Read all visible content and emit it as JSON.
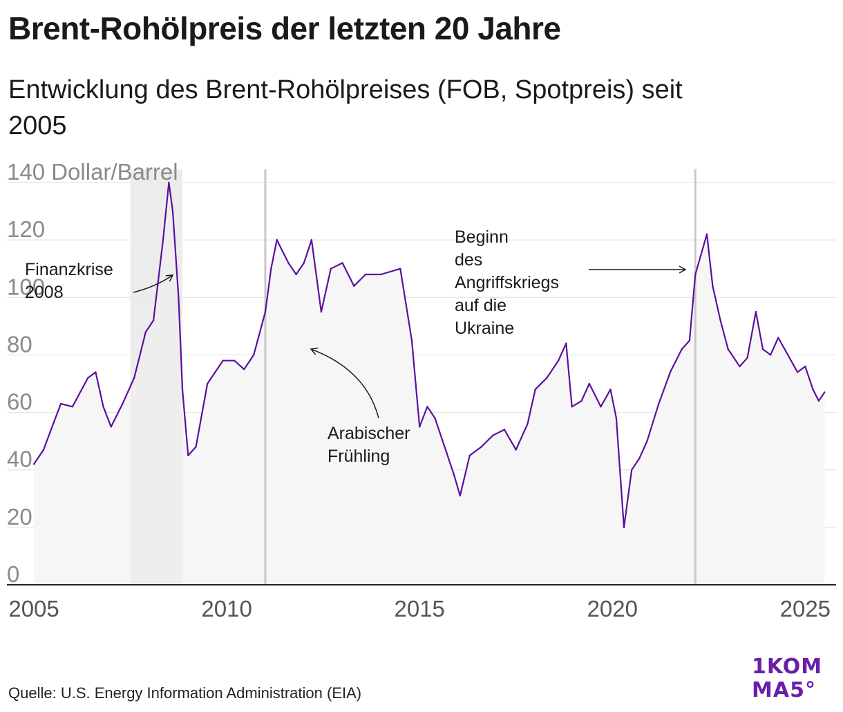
{
  "header": {
    "title": "Brent-Rohölpreis der letzten 20 Jahre",
    "subtitle": "Entwicklung des Brent-Rohölpreises (FOB, Spotpreis) seit 2005"
  },
  "footer": {
    "source": "Quelle: U.S. Energy Information Administration (EIA)",
    "logo_line1": "1KOM",
    "logo_line2": "MA5°"
  },
  "colors": {
    "line": "#5b0f9e",
    "area": "#f6f6f6",
    "highlight_band": "#ececec",
    "event_line": "#c8c8c8",
    "grid": "#dddddd",
    "axis": "#222222",
    "tick_text": "#8a8a8a",
    "year_text": "#555555"
  },
  "chart_data": {
    "type": "line",
    "ylabel": "Dollar/Barrel",
    "ylim": [
      0,
      140
    ],
    "yticks": [
      0,
      20,
      40,
      60,
      80,
      100,
      120,
      140
    ],
    "ytick_labels": [
      "0",
      "20",
      "40",
      "60",
      "80",
      "100",
      "120",
      "140 Dollar/Barrel"
    ],
    "xlim": [
      2004.3,
      2025.8
    ],
    "xticks": [
      2005,
      2010,
      2015,
      2020,
      2025
    ],
    "xtick_labels": [
      "2005",
      "2010",
      "2015",
      "2020",
      "2025"
    ],
    "grid": true,
    "series": [
      {
        "x": [
          2005.0,
          2005.25,
          2005.5,
          2005.7,
          2006.0,
          2006.4,
          2006.6,
          2006.8,
          2007.0,
          2007.3,
          2007.6,
          2007.9,
          2008.1,
          2008.35,
          2008.5,
          2008.6,
          2008.75,
          2008.85,
          2009.0,
          2009.2,
          2009.5,
          2009.9,
          2010.2,
          2010.45,
          2010.7,
          2011.0,
          2011.15,
          2011.3,
          2011.6,
          2011.8,
          2012.0,
          2012.2,
          2012.45,
          2012.7,
          2013.0,
          2013.3,
          2013.6,
          2014.0,
          2014.5,
          2014.8,
          2015.0,
          2015.2,
          2015.4,
          2015.7,
          2015.9,
          2016.05,
          2016.3,
          2016.6,
          2016.9,
          2017.2,
          2017.5,
          2017.8,
          2018.0,
          2018.3,
          2018.6,
          2018.8,
          2018.95,
          2019.2,
          2019.4,
          2019.7,
          2019.95,
          2020.1,
          2020.3,
          2020.5,
          2020.7,
          2020.9,
          2021.2,
          2021.5,
          2021.8,
          2022.0,
          2022.15,
          2022.45,
          2022.6,
          2022.8,
          2023.0,
          2023.3,
          2023.5,
          2023.72,
          2023.9,
          2024.1,
          2024.3,
          2024.55,
          2024.8,
          2025.0,
          2025.2,
          2025.35,
          2025.5
        ],
        "values": [
          42,
          47,
          56,
          63,
          62,
          72,
          74,
          62,
          55,
          63,
          72,
          88,
          92,
          120,
          140,
          130,
          100,
          68,
          45,
          48,
          70,
          78,
          78,
          75,
          80,
          95,
          110,
          120,
          112,
          108,
          112,
          120,
          95,
          110,
          112,
          104,
          108,
          108,
          110,
          85,
          55,
          62,
          58,
          46,
          38,
          31,
          45,
          48,
          52,
          54,
          47,
          56,
          68,
          72,
          78,
          84,
          62,
          64,
          70,
          62,
          68,
          58,
          20,
          40,
          44,
          50,
          63,
          74,
          82,
          85,
          108,
          122,
          104,
          92,
          82,
          76,
          79,
          95,
          82,
          80,
          86,
          80,
          74,
          76,
          68,
          64,
          67
        ]
      }
    ],
    "events": [
      {
        "type": "band",
        "x0": 2007.5,
        "x1": 2008.85,
        "label": "Finanzkrise 2008"
      },
      {
        "type": "line",
        "x": 2011.0,
        "label": "Arabischer Frühling"
      },
      {
        "type": "line",
        "x": 2022.15,
        "label": "Beginn des Angriffskriegs auf die Ukraine"
      }
    ]
  },
  "annotations": {
    "finanzkrise": [
      "Finanzkrise",
      "2008"
    ],
    "arabischer": [
      "Arabischer",
      "Frühling"
    ],
    "ukraine": [
      "Beginn",
      "des",
      "Angriffskriegs",
      "auf die",
      "Ukraine"
    ]
  }
}
